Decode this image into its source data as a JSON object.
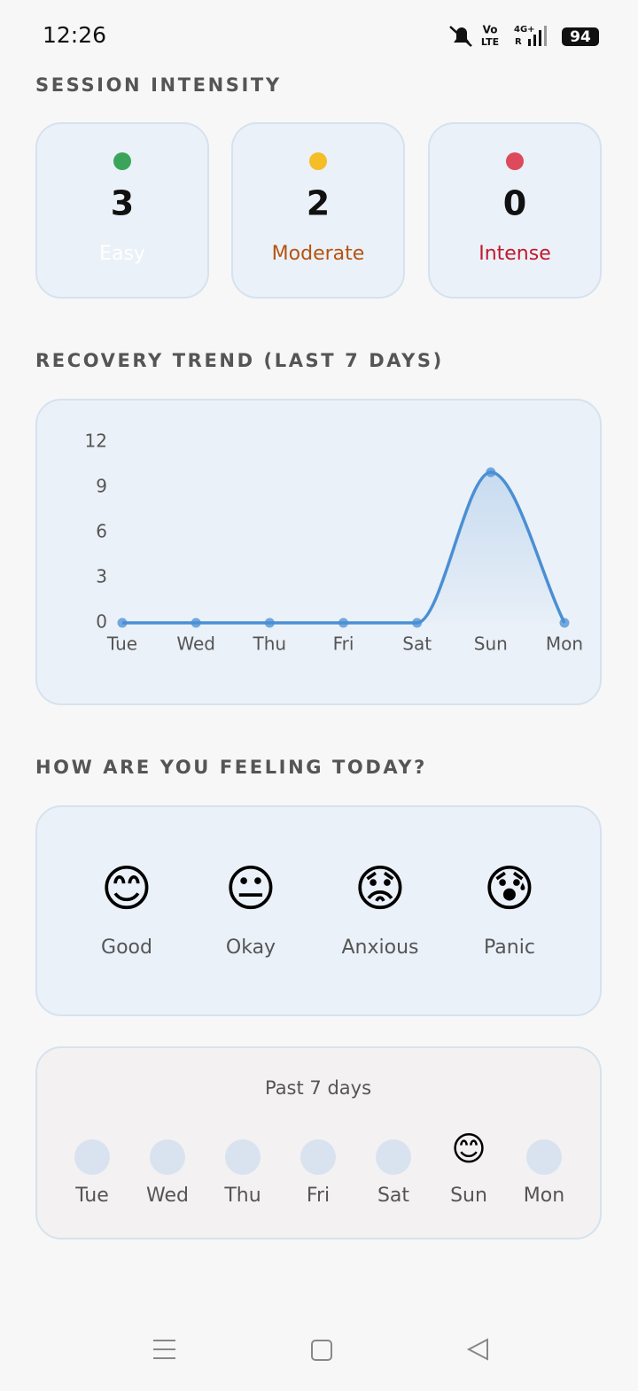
{
  "status_bar": {
    "time": "12:26",
    "volte": [
      "Vo",
      "LTE"
    ],
    "network": "4G+",
    "roaming": "R",
    "battery": "94"
  },
  "session_intensity": {
    "title": "SESSION INTENSITY",
    "cards": [
      {
        "count": "3",
        "label": "Easy",
        "dot_color": "#3aa55a",
        "label_color": "#ffffff"
      },
      {
        "count": "2",
        "label": "Moderate",
        "dot_color": "#f5bd26",
        "label_color": "#b5530f"
      },
      {
        "count": "0",
        "label": "Intense",
        "dot_color": "#dc4a5c",
        "label_color": "#c2182c"
      }
    ]
  },
  "recovery_title": "RECOVERY TREND (LAST 7 DAYS)",
  "chart_data": {
    "type": "line",
    "categories": [
      "Tue",
      "Wed",
      "Thu",
      "Fri",
      "Sat",
      "Sun",
      "Mon"
    ],
    "values": [
      0,
      0,
      0,
      0,
      0,
      10,
      0
    ],
    "color": "#4a8fd4",
    "ylim": [
      0,
      12
    ],
    "yticks": [
      0,
      3,
      6,
      9,
      12
    ],
    "grid": false,
    "smooth": true,
    "area": true
  },
  "feelings": {
    "title": "HOW ARE YOU FEELING TODAY?",
    "options": [
      {
        "emoji": "😊",
        "label": "Good"
      },
      {
        "emoji": "😐",
        "label": "Okay"
      },
      {
        "emoji": "😟",
        "label": "Anxious"
      },
      {
        "emoji": "😰",
        "label": "Panic"
      }
    ]
  },
  "past_week": {
    "title": "Past 7 days",
    "days": [
      {
        "label": "Tue"
      },
      {
        "label": "Wed"
      },
      {
        "label": "Thu"
      },
      {
        "label": "Fri"
      },
      {
        "label": "Sat"
      },
      {
        "label": "Sun",
        "emoji": "😊"
      },
      {
        "label": "Mon"
      }
    ]
  }
}
